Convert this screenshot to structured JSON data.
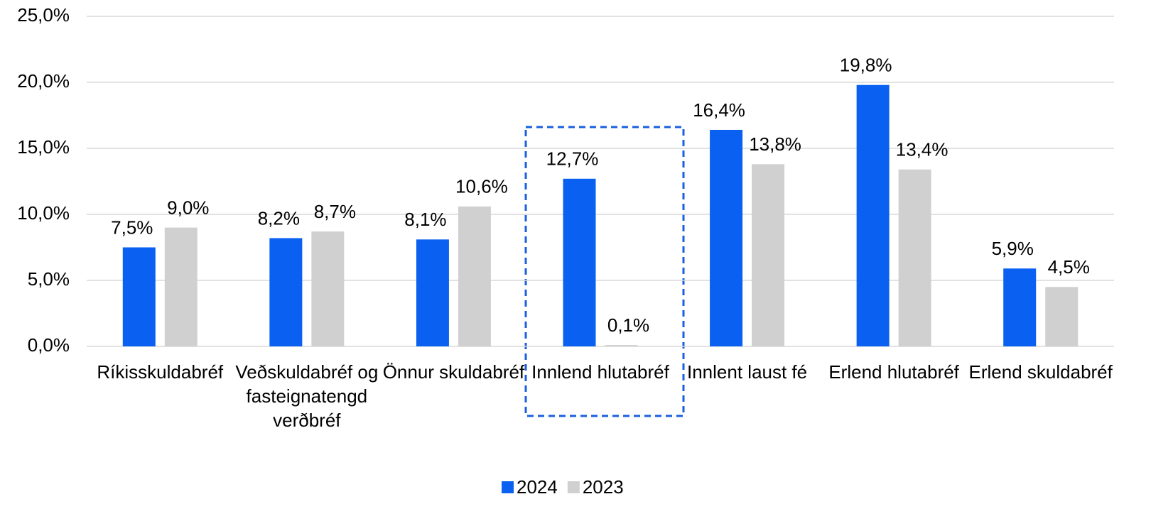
{
  "chart_data": {
    "type": "bar",
    "categories": [
      "Ríkisskuldabréf",
      "Veðskuldabréf og fasteignatengd verðbréf",
      "Önnur skuldabréf",
      "Innlend hlutabréf",
      "Innlent laust fé",
      "Erlend hlutabréf",
      "Erlend skuldabréf"
    ],
    "series": [
      {
        "name": "2024",
        "color": "#0a60f0",
        "values": [
          7.5,
          8.2,
          8.1,
          12.7,
          16.4,
          19.8,
          5.9
        ],
        "value_labels": [
          "7,5%",
          "8,2%",
          "8,1%",
          "12,7%",
          "16,4%",
          "19,8%",
          "5,9%"
        ]
      },
      {
        "name": "2023",
        "color": "#d0d0d0",
        "values": [
          9.0,
          8.7,
          10.6,
          0.1,
          13.8,
          13.4,
          4.5
        ],
        "value_labels": [
          "9,0%",
          "8,7%",
          "10,6%",
          "0,1%",
          "13,8%",
          "13,4%",
          "4,5%"
        ]
      }
    ],
    "ylim": [
      0,
      25
    ],
    "yticks": [
      {
        "value": 0,
        "label": "0,0%"
      },
      {
        "value": 5,
        "label": "5,0%"
      },
      {
        "value": 10,
        "label": "10,0%"
      },
      {
        "value": 15,
        "label": "15,0%"
      },
      {
        "value": 20,
        "label": "20,0%"
      },
      {
        "value": 25,
        "label": "25,0%"
      }
    ],
    "grid": true,
    "legend": "bottom"
  }
}
